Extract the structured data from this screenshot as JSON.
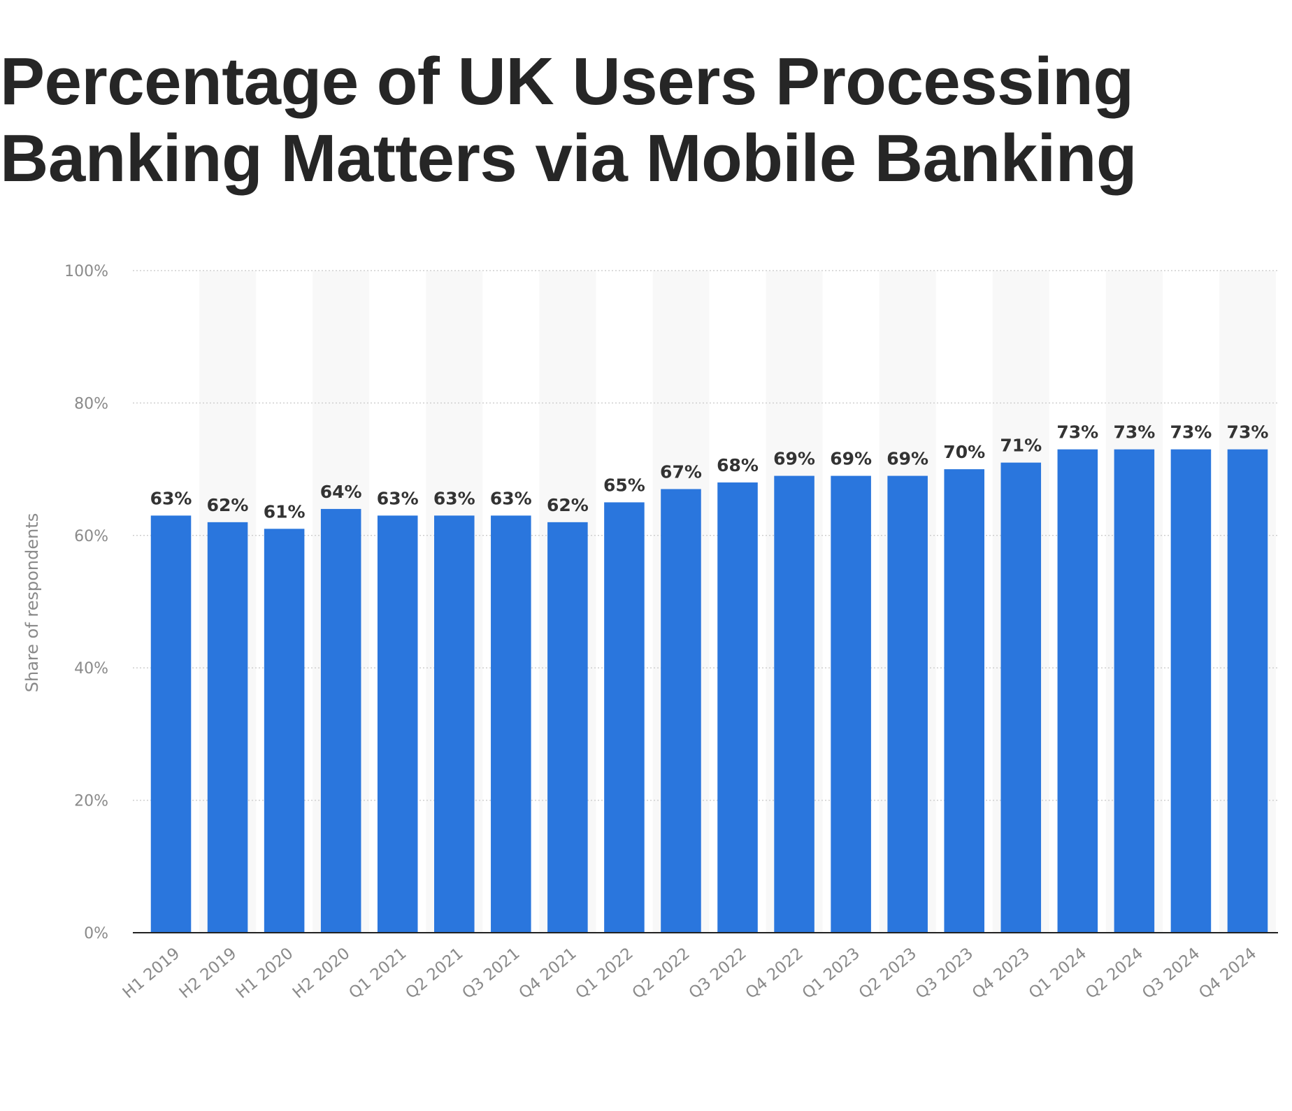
{
  "chart_data": {
    "type": "bar",
    "title": "Percentage of UK Users Processing Banking Matters via Mobile Banking",
    "ylabel": "Share of respondents",
    "xlabel": "",
    "ylim": [
      0,
      100
    ],
    "yticks": [
      "0%",
      "20%",
      "40%",
      "60%",
      "80%",
      "100%"
    ],
    "ytick_values": [
      0,
      20,
      40,
      60,
      80,
      100
    ],
    "grid": true,
    "bar_color": "#2a76dd",
    "categories": [
      "H1 2019",
      "H2 2019",
      "H1 2020",
      "H2 2020",
      "Q1 2021",
      "Q2 2021",
      "Q3 2021",
      "Q4 2021",
      "Q1 2022",
      "Q2 2022",
      "Q3 2022",
      "Q4 2022",
      "Q1 2023",
      "Q2 2023",
      "Q3 2023",
      "Q4 2023",
      "Q1 2024",
      "Q2 2024",
      "Q3 2024",
      "Q4 2024"
    ],
    "values": [
      63,
      62,
      61,
      64,
      63,
      63,
      63,
      62,
      65,
      67,
      68,
      69,
      69,
      69,
      70,
      71,
      73,
      73,
      73,
      73
    ],
    "data_labels": [
      "63%",
      "62%",
      "61%",
      "64%",
      "63%",
      "63%",
      "63%",
      "62%",
      "65%",
      "67%",
      "68%",
      "69%",
      "69%",
      "69%",
      "70%",
      "71%",
      "73%",
      "73%",
      "73%",
      "73%"
    ]
  }
}
